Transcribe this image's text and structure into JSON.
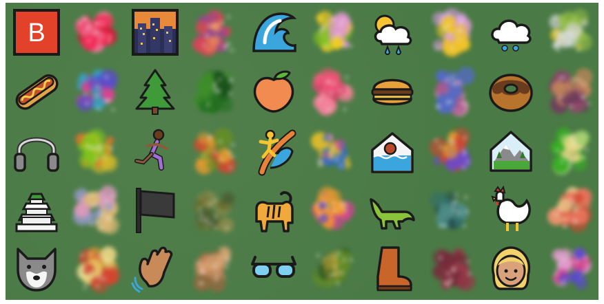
{
  "grid": {
    "rows": 5,
    "cols": 10,
    "background_color": "#4a7a45"
  },
  "tiles": [
    {
      "row": 0,
      "col": 0,
      "kind": "emoji",
      "icon": "b-button-icon",
      "text": "B"
    },
    {
      "row": 0,
      "col": 1,
      "kind": "generated",
      "icon": "b-button-icon"
    },
    {
      "row": 0,
      "col": 2,
      "kind": "emoji",
      "icon": "night-city-icon"
    },
    {
      "row": 0,
      "col": 3,
      "kind": "generated",
      "icon": "night-city-icon"
    },
    {
      "row": 0,
      "col": 4,
      "kind": "emoji",
      "icon": "water-wave-icon"
    },
    {
      "row": 0,
      "col": 5,
      "kind": "generated",
      "icon": "water-wave-icon"
    },
    {
      "row": 0,
      "col": 6,
      "kind": "emoji",
      "icon": "sun-behind-rain-cloud-icon"
    },
    {
      "row": 0,
      "col": 7,
      "kind": "generated",
      "icon": "sun-behind-rain-cloud-icon"
    },
    {
      "row": 0,
      "col": 8,
      "kind": "emoji",
      "icon": "snow-cloud-icon"
    },
    {
      "row": 0,
      "col": 9,
      "kind": "generated",
      "icon": "snow-cloud-icon"
    },
    {
      "row": 1,
      "col": 0,
      "kind": "emoji",
      "icon": "hot-dog-icon"
    },
    {
      "row": 1,
      "col": 1,
      "kind": "generated",
      "icon": "hot-dog-icon"
    },
    {
      "row": 1,
      "col": 2,
      "kind": "emoji",
      "icon": "evergreen-tree-icon"
    },
    {
      "row": 1,
      "col": 3,
      "kind": "generated",
      "icon": "evergreen-tree-icon"
    },
    {
      "row": 1,
      "col": 4,
      "kind": "emoji",
      "icon": "peach-icon"
    },
    {
      "row": 1,
      "col": 5,
      "kind": "generated",
      "icon": "peach-icon"
    },
    {
      "row": 1,
      "col": 6,
      "kind": "emoji",
      "icon": "hamburger-icon"
    },
    {
      "row": 1,
      "col": 7,
      "kind": "generated",
      "icon": "hamburger-icon"
    },
    {
      "row": 1,
      "col": 8,
      "kind": "emoji",
      "icon": "doughnut-icon"
    },
    {
      "row": 1,
      "col": 9,
      "kind": "generated",
      "icon": "doughnut-icon"
    },
    {
      "row": 2,
      "col": 0,
      "kind": "emoji",
      "icon": "headphone-icon"
    },
    {
      "row": 2,
      "col": 1,
      "kind": "generated",
      "icon": "headphone-icon"
    },
    {
      "row": 2,
      "col": 2,
      "kind": "emoji",
      "icon": "person-running-icon"
    },
    {
      "row": 2,
      "col": 3,
      "kind": "generated",
      "icon": "person-running-icon"
    },
    {
      "row": 2,
      "col": 4,
      "kind": "emoji",
      "icon": "person-surfing-icon"
    },
    {
      "row": 2,
      "col": 5,
      "kind": "generated",
      "icon": "person-surfing-icon"
    },
    {
      "row": 2,
      "col": 6,
      "kind": "emoji",
      "icon": "house-flood-icon"
    },
    {
      "row": 2,
      "col": 7,
      "kind": "generated",
      "icon": "house-flood-icon"
    },
    {
      "row": 2,
      "col": 8,
      "kind": "emoji",
      "icon": "mountain-landscape-icon"
    },
    {
      "row": 2,
      "col": 9,
      "kind": "generated",
      "icon": "mountain-landscape-icon"
    },
    {
      "row": 3,
      "col": 0,
      "kind": "emoji",
      "icon": "japanese-castle-icon"
    },
    {
      "row": 3,
      "col": 1,
      "kind": "generated",
      "icon": "japanese-castle-icon"
    },
    {
      "row": 3,
      "col": 2,
      "kind": "emoji",
      "icon": "black-flag-icon"
    },
    {
      "row": 3,
      "col": 3,
      "kind": "generated",
      "icon": "black-flag-icon"
    },
    {
      "row": 3,
      "col": 4,
      "kind": "emoji",
      "icon": "tiger-icon"
    },
    {
      "row": 3,
      "col": 5,
      "kind": "generated",
      "icon": "tiger-icon"
    },
    {
      "row": 3,
      "col": 6,
      "kind": "emoji",
      "icon": "crocodile-icon"
    },
    {
      "row": 3,
      "col": 7,
      "kind": "generated",
      "icon": "crocodile-icon"
    },
    {
      "row": 3,
      "col": 8,
      "kind": "emoji",
      "icon": "rooster-icon"
    },
    {
      "row": 3,
      "col": 9,
      "kind": "generated",
      "icon": "rooster-icon"
    },
    {
      "row": 4,
      "col": 0,
      "kind": "emoji",
      "icon": "wolf-face-icon"
    },
    {
      "row": 4,
      "col": 1,
      "kind": "generated",
      "icon": "wolf-face-icon"
    },
    {
      "row": 4,
      "col": 2,
      "kind": "emoji",
      "icon": "waving-hand-icon"
    },
    {
      "row": 4,
      "col": 3,
      "kind": "generated",
      "icon": "waving-hand-icon"
    },
    {
      "row": 4,
      "col": 4,
      "kind": "emoji",
      "icon": "glasses-icon"
    },
    {
      "row": 4,
      "col": 5,
      "kind": "generated",
      "icon": "glasses-icon"
    },
    {
      "row": 4,
      "col": 6,
      "kind": "emoji",
      "icon": "boot-icon"
    },
    {
      "row": 4,
      "col": 7,
      "kind": "generated",
      "icon": "boot-icon"
    },
    {
      "row": 4,
      "col": 8,
      "kind": "emoji",
      "icon": "woman-blond-hair-icon"
    },
    {
      "row": 4,
      "col": 9,
      "kind": "generated",
      "icon": "woman-blond-hair-icon"
    }
  ]
}
